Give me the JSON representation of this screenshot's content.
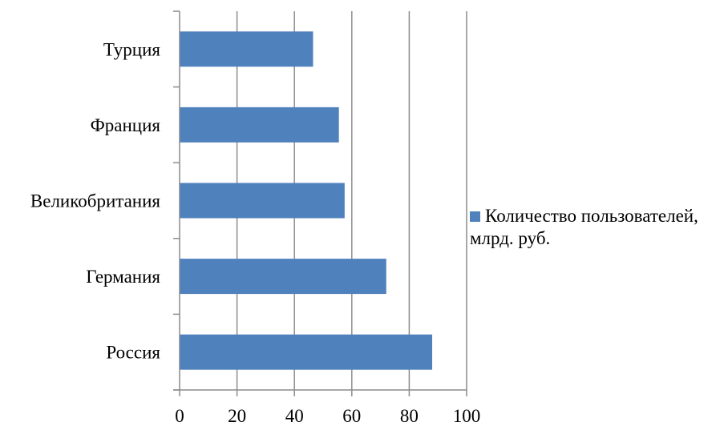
{
  "chart_data": {
    "type": "bar",
    "orientation": "horizontal",
    "categories": [
      "Россия",
      "Германия",
      "Великобритания",
      "Франция",
      "Турция"
    ],
    "series": [
      {
        "name": "Количество пользователей, млрд. руб.",
        "values": [
          88,
          72,
          57.5,
          55.5,
          46.5
        ],
        "color": "#4f81bd"
      }
    ],
    "title": "",
    "xlabel": "",
    "ylabel": "",
    "xlim": [
      0,
      100
    ],
    "xticks": [
      "0",
      "20",
      "40",
      "60",
      "80",
      "100"
    ],
    "grid": true,
    "legend": "right"
  }
}
